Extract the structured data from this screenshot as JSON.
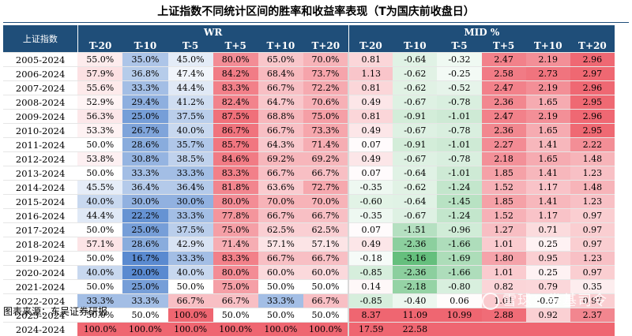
{
  "title": "上证指数不同统计区间的胜率和收益率表现（T为国庆前收盘日）",
  "table": {
    "corner_label": "上证指数",
    "groups": [
      "WR",
      "MID %"
    ],
    "columns": [
      "T-20",
      "T-10",
      "T-5",
      "T+5",
      "T+10",
      "T+20",
      "T-20",
      "T-10",
      "T-5",
      "T+5",
      "T+10",
      "T+20"
    ],
    "rows": [
      {
        "year": "2005-2024",
        "cells": [
          "55.0%",
          "35.0%",
          "45.0%",
          "80.0%",
          "65.0%",
          "70.0%",
          "0.81",
          "-0.64",
          "-0.32",
          "2.47",
          "2.19",
          "2.96"
        ]
      },
      {
        "year": "2006-2024",
        "cells": [
          "57.9%",
          "36.8%",
          "47.4%",
          "84.2%",
          "68.4%",
          "73.7%",
          "1.13",
          "-0.62",
          "-0.25",
          "2.58",
          "2.73",
          "2.97"
        ]
      },
      {
        "year": "2007-2024",
        "cells": [
          "55.6%",
          "33.3%",
          "44.4%",
          "83.3%",
          "66.7%",
          "72.2%",
          "0.81",
          "-0.62",
          "-0.52",
          "2.47",
          "2.19",
          "2.96"
        ]
      },
      {
        "year": "2008-2024",
        "cells": [
          "52.9%",
          "29.4%",
          "41.2%",
          "82.4%",
          "64.7%",
          "70.6%",
          "0.49",
          "-0.67",
          "-0.78",
          "2.36",
          "1.65",
          "2.95"
        ]
      },
      {
        "year": "2009-2024",
        "cells": [
          "56.3%",
          "25.0%",
          "37.5%",
          "87.5%",
          "68.8%",
          "75.0%",
          "0.81",
          "-0.91",
          "-1.01",
          "2.47",
          "2.19",
          "2.96"
        ]
      },
      {
        "year": "2010-2024",
        "cells": [
          "53.3%",
          "26.7%",
          "40.0%",
          "86.7%",
          "66.7%",
          "73.3%",
          "0.49",
          "-0.67",
          "-0.78",
          "2.36",
          "1.65",
          "2.95"
        ]
      },
      {
        "year": "2011-2024",
        "cells": [
          "50.0%",
          "28.6%",
          "35.7%",
          "85.7%",
          "64.3%",
          "71.4%",
          "0.07",
          "-0.91",
          "-1.01",
          "2.27",
          "1.41",
          "2.22"
        ]
      },
      {
        "year": "2012-2024",
        "cells": [
          "53.8%",
          "30.8%",
          "38.5%",
          "84.6%",
          "69.2%",
          "69.2%",
          "0.49",
          "-0.67",
          "-0.78",
          "2.18",
          "1.65",
          "1.48"
        ]
      },
      {
        "year": "2013-2024",
        "cells": [
          "50.0%",
          "33.3%",
          "33.3%",
          "83.3%",
          "66.7%",
          "66.7%",
          "0.07",
          "-0.64",
          "-1.01",
          "1.85",
          "1.41",
          "1.23"
        ]
      },
      {
        "year": "2014-2024",
        "cells": [
          "45.5%",
          "36.4%",
          "36.4%",
          "81.8%",
          "63.6%",
          "72.7%",
          "-0.35",
          "-0.62",
          "-1.24",
          "1.52",
          "1.17",
          "1.48"
        ]
      },
      {
        "year": "2015-2024",
        "cells": [
          "40.0%",
          "30.0%",
          "30.0%",
          "80.0%",
          "70.0%",
          "70.0%",
          "-0.60",
          "-0.64",
          "-1.45",
          "1.85",
          "1.41",
          "1.23"
        ]
      },
      {
        "year": "2016-2024",
        "cells": [
          "44.4%",
          "22.2%",
          "33.3%",
          "77.8%",
          "66.7%",
          "66.7%",
          "-0.35",
          "-0.67",
          "-1.24",
          "1.52",
          "1.17",
          "0.97"
        ]
      },
      {
        "year": "2017-2024",
        "cells": [
          "50.0%",
          "25.0%",
          "37.5%",
          "75.0%",
          "62.5%",
          "62.5%",
          "0.07",
          "-1.51",
          "-0.96",
          "1.27",
          "0.71",
          "0.97"
        ]
      },
      {
        "year": "2018-2024",
        "cells": [
          "57.1%",
          "28.6%",
          "42.9%",
          "71.4%",
          "57.1%",
          "57.1%",
          "0.49",
          "-2.36",
          "-1.66",
          "1.01",
          "0.25",
          "0.97"
        ]
      },
      {
        "year": "2019-2024",
        "cells": [
          "50.0%",
          "16.7%",
          "33.3%",
          "83.3%",
          "66.7%",
          "66.7%",
          "-0.18",
          "-3.16",
          "-1.69",
          "1.80",
          "0.95",
          "1.23"
        ]
      },
      {
        "year": "2020-2024",
        "cells": [
          "40.0%",
          "20.0%",
          "40.0%",
          "80.0%",
          "60.0%",
          "60.0%",
          "-0.85",
          "-2.36",
          "-1.66",
          "1.01",
          "0.25",
          "0.97"
        ]
      },
      {
        "year": "2021-2024",
        "cells": [
          "50.0%",
          "25.0%",
          "50.0%",
          "75.0%",
          "50.0%",
          "50.0%",
          "0.14",
          "-2.18",
          "-0.80",
          "0.82",
          "0.79",
          "0.35"
        ]
      },
      {
        "year": "2022-2024",
        "cells": [
          "33.3%",
          "33.3%",
          "66.7%",
          "66.7%",
          "33.3%",
          "66.7%",
          "-0.85",
          "-0.40",
          "0.06",
          "1.01",
          "-0.07",
          "0.97"
        ]
      },
      {
        "year": "2023-2024",
        "cells": [
          "50.0%",
          "50.0%",
          "100.0%",
          "50.0%",
          "50.0%",
          "50.0%",
          "8.37",
          "11.09",
          "10.99",
          "2.88",
          "0.92",
          "2.37"
        ]
      },
      {
        "year": "2024-2024",
        "cells": [
          "100.0%",
          "100.0%",
          "100.0%",
          "100.0%",
          "100.0%",
          "100.0%",
          "17.59",
          "22.58",
          "",
          "",
          "",
          ""
        ]
      }
    ]
  },
  "colors": {
    "header_bg": "#1f4e79",
    "red_strong": "#ef6671",
    "blue_strong": "#5a8ad0",
    "green_strong": "#63be7b",
    "neutral": "#ffffff"
  },
  "footer": "图表来源：东吴证券研报",
  "watermark": "雪球：券基司令"
}
